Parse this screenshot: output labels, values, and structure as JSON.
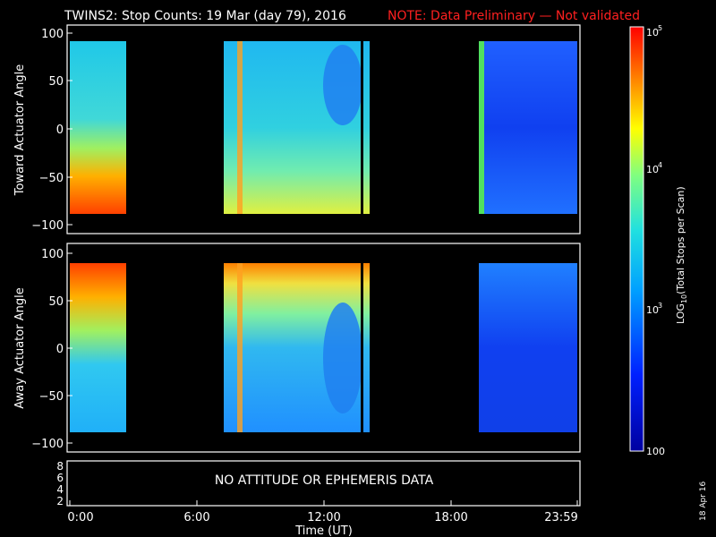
{
  "header": {
    "title": "TWINS2: Stop Counts: 19 Mar (day  79), 2016",
    "note": "NOTE: Data Preliminary — Not validated",
    "title_color": "#ffffff",
    "note_color": "#ff2020"
  },
  "chart_data": [
    {
      "type": "heatmap",
      "ylabel": "Toward Actuator Angle",
      "ylim": [
        -110,
        110
      ],
      "yticks": [
        "100",
        "50",
        "0",
        "−50",
        "−100"
      ],
      "xlim": [
        0,
        24
      ],
      "data_intervals_hours": [
        [
          0.0,
          2.8
        ],
        [
          7.4,
          14.3
        ],
        [
          19.2,
          24.0
        ]
      ],
      "description_levels": {
        "background": 1000,
        "max": 100000
      }
    },
    {
      "type": "heatmap",
      "ylabel": "Away Actuator Angle",
      "ylim": [
        -110,
        110
      ],
      "yticks": [
        "100",
        "50",
        "0",
        "−50",
        "−100"
      ],
      "xlim": [
        0,
        24
      ],
      "data_intervals_hours": [
        [
          0.0,
          2.8
        ],
        [
          7.4,
          14.3
        ],
        [
          19.2,
          24.0
        ]
      ]
    },
    {
      "type": "line",
      "yticks": [
        "8",
        "6",
        "4",
        "2"
      ],
      "message": "NO ATTITUDE OR EPHEMERIS DATA"
    }
  ],
  "xaxis": {
    "xlabel": "Time (UT)",
    "ticks": [
      "0:00",
      "6:00",
      "12:00",
      "18:00",
      "23:59"
    ]
  },
  "colorbar": {
    "label_base": "LOG",
    "label_sub": "10",
    "label_rest": "(Total Stops per Scan)",
    "top_label": "10",
    "top_exp": "5",
    "mid_label": "10",
    "mid_exp": "4",
    "low_label": "10",
    "low_exp": "3",
    "bottom_label": "100"
  },
  "date_stamp": "18 Apr 16"
}
